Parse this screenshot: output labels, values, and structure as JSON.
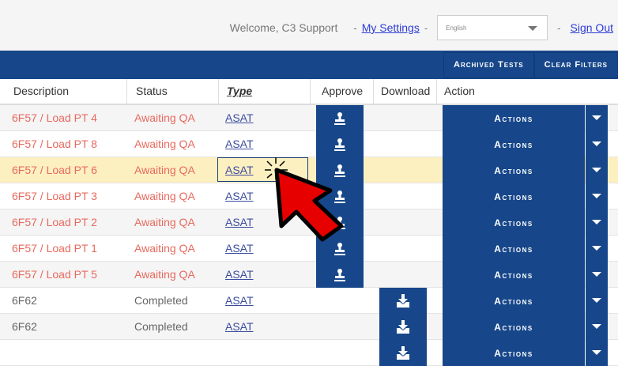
{
  "header": {
    "welcome": "Welcome, C3 Support",
    "sep1": "-",
    "my_settings": "My Settings",
    "sep2": "-",
    "language": "English",
    "sep3": "-",
    "sign_out": "Sign Out"
  },
  "nav": {
    "archived": "Archived Tests",
    "clear": "Clear Filters"
  },
  "columns": [
    "Description",
    "Status",
    "Type",
    "Approve",
    "Download",
    "Action"
  ],
  "actions_label": "Actions",
  "rows": [
    {
      "description": "6F57 / Load PT 4",
      "status": "Awaiting QA",
      "type": "ASAT",
      "approve": true,
      "download": false,
      "state": "pending",
      "bg": "#f5f5f5"
    },
    {
      "description": "6F57 / Load PT 8",
      "status": "Awaiting QA",
      "type": "ASAT",
      "approve": true,
      "download": false,
      "state": "pending",
      "bg": "#ffffff"
    },
    {
      "description": "6F57 / Load PT 6",
      "status": "Awaiting QA",
      "type": "ASAT",
      "approve": true,
      "download": false,
      "state": "pending",
      "bg": "#fdf0c0",
      "highlighted": true
    },
    {
      "description": "6F57 / Load PT 3",
      "status": "Awaiting QA",
      "type": "ASAT",
      "approve": true,
      "download": false,
      "state": "pending",
      "bg": "#ffffff"
    },
    {
      "description": "6F57 / Load PT 2",
      "status": "Awaiting QA",
      "type": "ASAT",
      "approve": true,
      "download": false,
      "state": "pending",
      "bg": "#f5f5f5"
    },
    {
      "description": "6F57 / Load PT 1",
      "status": "Awaiting QA",
      "type": "ASAT",
      "approve": true,
      "download": false,
      "state": "pending",
      "bg": "#ffffff"
    },
    {
      "description": "6F57 / Load PT 5",
      "status": "Awaiting QA",
      "type": "ASAT",
      "approve": true,
      "download": false,
      "state": "pending",
      "bg": "#f5f5f5"
    },
    {
      "description": "6F62",
      "status": "Completed",
      "type": "ASAT",
      "approve": false,
      "download": true,
      "state": "done",
      "bg": "#ffffff"
    },
    {
      "description": "6F62",
      "status": "Completed",
      "type": "ASAT",
      "approve": false,
      "download": true,
      "state": "done",
      "bg": "#f5f5f5"
    },
    {
      "description": "",
      "status": "",
      "type": "",
      "approve": false,
      "download": true,
      "state": "done",
      "bg": "#ffffff"
    }
  ],
  "colors": {
    "primary": "#17478a",
    "pending_text": "#e8695e",
    "highlight": "#fdf0c0",
    "pointer": "#e60000"
  }
}
